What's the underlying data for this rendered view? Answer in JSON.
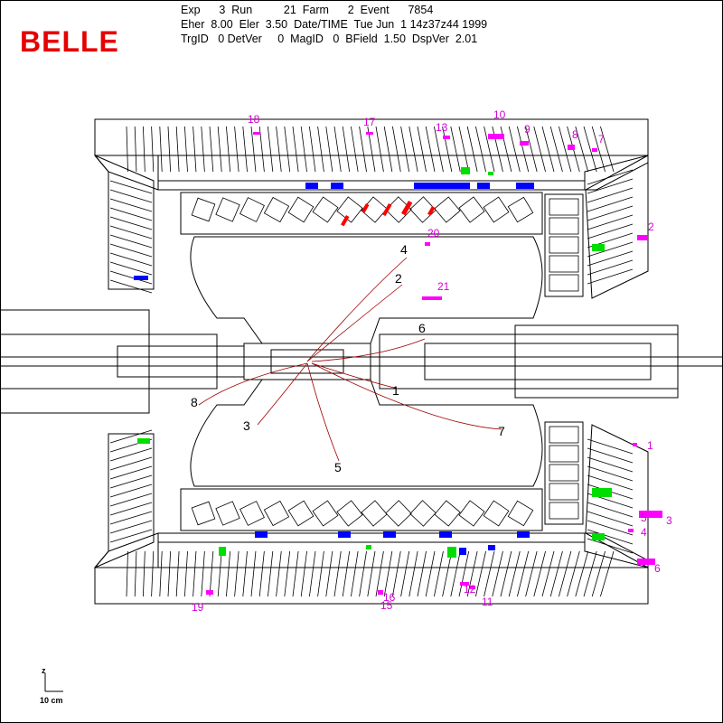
{
  "logo": "BELLE",
  "header": {
    "line1": "Exp      3  Run          21  Farm      2  Event      7854",
    "line2": "Eher  8.00  Eler  3.50  Date/TIME  Tue Jun  1 14z37z44 1999",
    "line3": "TrgID   0 DetVer     0  MagID   0  BField  1.50  DspVer  2.01"
  },
  "scale": {
    "label": "10 cm",
    "axis_letter": "z"
  },
  "colors": {
    "outline": "#000000",
    "magenta_cluster": "#ff00ff",
    "green_hit": "#00dd00",
    "blue_hit": "#0000ff",
    "red_hit": "#ff0000",
    "track": "#a00000"
  },
  "cluster_labels": [
    "18",
    "17",
    "13",
    "10",
    "9",
    "8",
    "7",
    "2",
    "21",
    "20",
    "1",
    "3",
    "5",
    "4",
    "6",
    "19",
    "15",
    "16",
    "12",
    "11"
  ],
  "track_labels": [
    "4",
    "2",
    "6",
    "1",
    "8",
    "3",
    "7",
    "5"
  ]
}
